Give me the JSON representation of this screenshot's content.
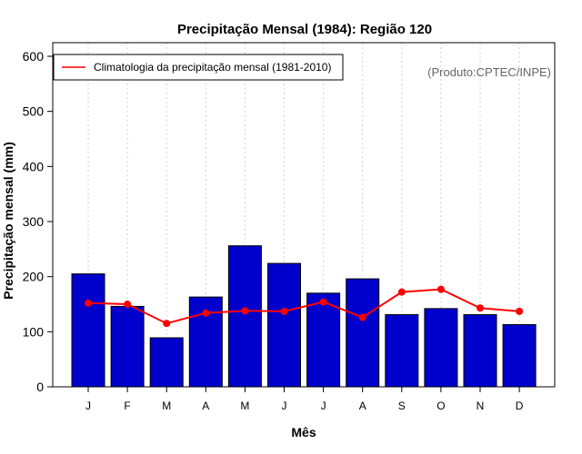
{
  "chart_data": {
    "type": "bar",
    "title": "Precipitação Mensal (1984): Região 120",
    "xlabel": "Mês",
    "ylabel": "Precipitação mensal (mm)",
    "ylim": [
      0,
      600
    ],
    "yticks": [
      0,
      100,
      200,
      300,
      400,
      500,
      600
    ],
    "categories": [
      "J",
      "F",
      "M",
      "A",
      "M",
      "J",
      "J",
      "A",
      "S",
      "O",
      "N",
      "D"
    ],
    "values": [
      205,
      146,
      89,
      163,
      256,
      224,
      170,
      196,
      131,
      142,
      131,
      113
    ],
    "bar_color": "#0000cc",
    "line_series": {
      "name": "Climatologia da precipitação mensal (1981-2010)",
      "values": [
        152,
        150,
        115,
        134,
        138,
        137,
        154,
        126,
        172,
        177,
        143,
        137
      ],
      "color": "#ff0000"
    },
    "legend_position": "top-left",
    "credit": "(Produto:CPTEC/INPE)",
    "grid": "vertical dotted"
  }
}
